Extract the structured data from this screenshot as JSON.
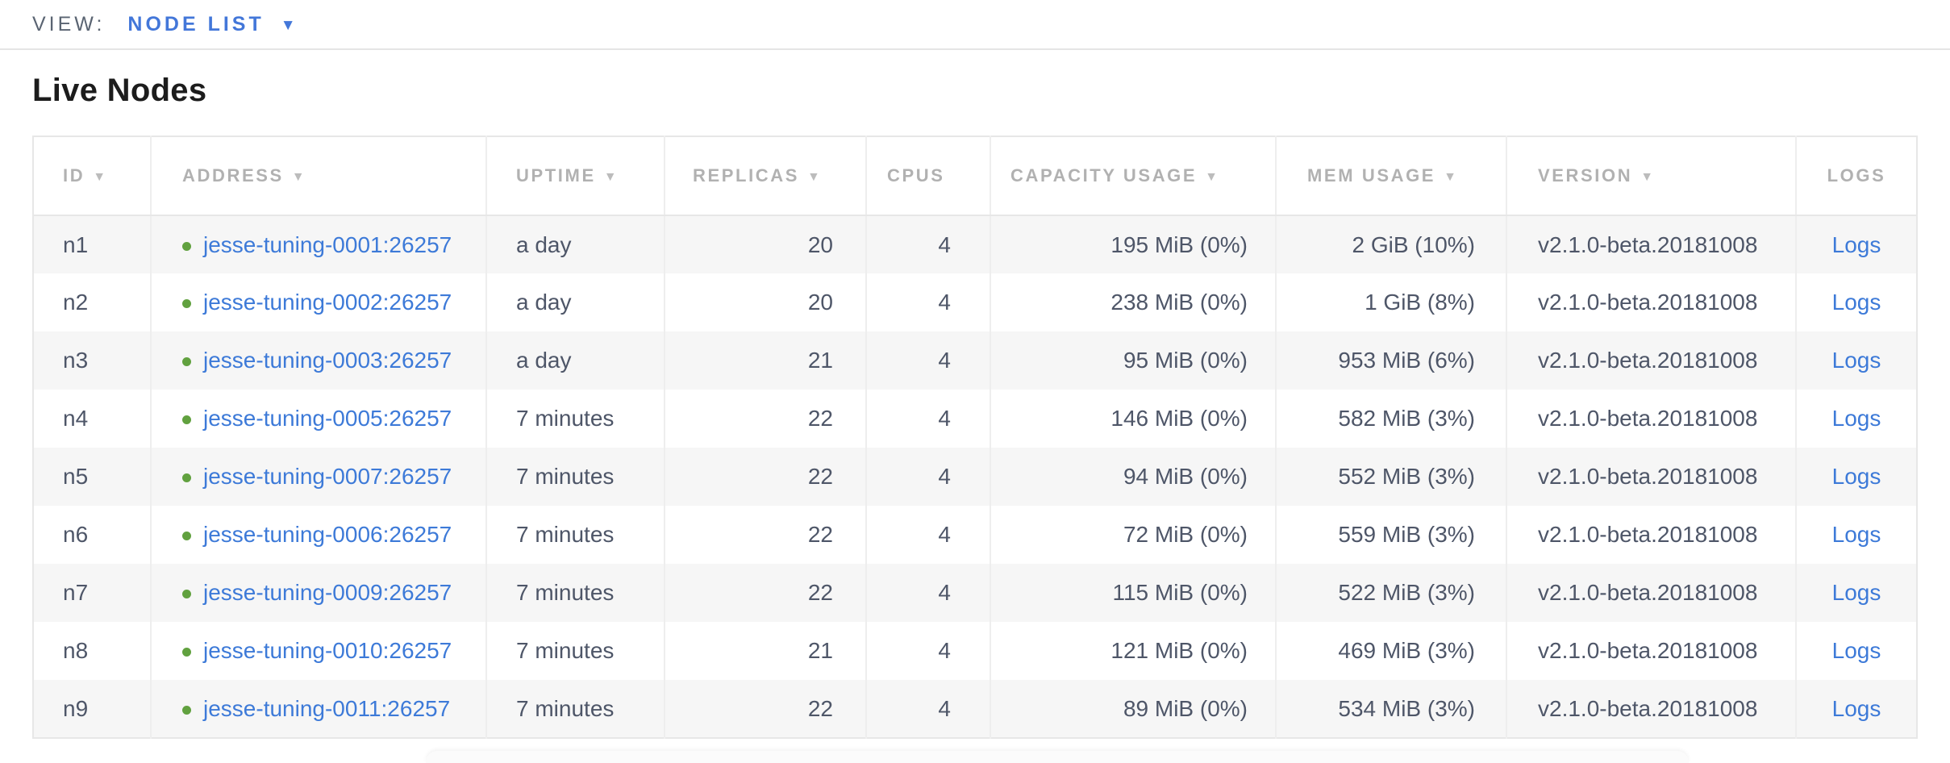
{
  "view_bar": {
    "label": "VIEW:",
    "selected": "NODE LIST"
  },
  "page": {
    "title": "Live Nodes"
  },
  "table": {
    "columns": [
      {
        "key": "id",
        "label": "ID",
        "sortable": true,
        "align": "left"
      },
      {
        "key": "address",
        "label": "ADDRESS",
        "sortable": true,
        "align": "left"
      },
      {
        "key": "uptime",
        "label": "UPTIME",
        "sortable": true,
        "align": "left"
      },
      {
        "key": "replicas",
        "label": "REPLICAS",
        "sortable": true,
        "align": "right"
      },
      {
        "key": "cpus",
        "label": "CPUS",
        "sortable": false,
        "align": "right"
      },
      {
        "key": "capacity",
        "label": "CAPACITY USAGE",
        "sortable": true,
        "align": "right"
      },
      {
        "key": "mem",
        "label": "MEM USAGE",
        "sortable": true,
        "align": "right"
      },
      {
        "key": "version",
        "label": "VERSION",
        "sortable": true,
        "align": "left"
      },
      {
        "key": "logs",
        "label": "LOGS",
        "sortable": false,
        "align": "center"
      }
    ],
    "rows": [
      {
        "id": "n1",
        "status": "live",
        "address": "jesse-tuning-0001:26257",
        "uptime": "a day",
        "replicas": "20",
        "cpus": "4",
        "capacity": "195 MiB (0%)",
        "mem": "2 GiB (10%)",
        "version": "v2.1.0-beta.20181008",
        "logs": "Logs"
      },
      {
        "id": "n2",
        "status": "live",
        "address": "jesse-tuning-0002:26257",
        "uptime": "a day",
        "replicas": "20",
        "cpus": "4",
        "capacity": "238 MiB (0%)",
        "mem": "1 GiB (8%)",
        "version": "v2.1.0-beta.20181008",
        "logs": "Logs"
      },
      {
        "id": "n3",
        "status": "live",
        "address": "jesse-tuning-0003:26257",
        "uptime": "a day",
        "replicas": "21",
        "cpus": "4",
        "capacity": "95 MiB (0%)",
        "mem": "953 MiB (6%)",
        "version": "v2.1.0-beta.20181008",
        "logs": "Logs"
      },
      {
        "id": "n4",
        "status": "live",
        "address": "jesse-tuning-0005:26257",
        "uptime": "7 minutes",
        "replicas": "22",
        "cpus": "4",
        "capacity": "146 MiB (0%)",
        "mem": "582 MiB (3%)",
        "version": "v2.1.0-beta.20181008",
        "logs": "Logs"
      },
      {
        "id": "n5",
        "status": "live",
        "address": "jesse-tuning-0007:26257",
        "uptime": "7 minutes",
        "replicas": "22",
        "cpus": "4",
        "capacity": "94 MiB (0%)",
        "mem": "552 MiB (3%)",
        "version": "v2.1.0-beta.20181008",
        "logs": "Logs"
      },
      {
        "id": "n6",
        "status": "live",
        "address": "jesse-tuning-0006:26257",
        "uptime": "7 minutes",
        "replicas": "22",
        "cpus": "4",
        "capacity": "72 MiB (0%)",
        "mem": "559 MiB (3%)",
        "version": "v2.1.0-beta.20181008",
        "logs": "Logs"
      },
      {
        "id": "n7",
        "status": "live",
        "address": "jesse-tuning-0009:26257",
        "uptime": "7 minutes",
        "replicas": "22",
        "cpus": "4",
        "capacity": "115 MiB (0%)",
        "mem": "522 MiB (3%)",
        "version": "v2.1.0-beta.20181008",
        "logs": "Logs"
      },
      {
        "id": "n8",
        "status": "live",
        "address": "jesse-tuning-0010:26257",
        "uptime": "7 minutes",
        "replicas": "21",
        "cpus": "4",
        "capacity": "121 MiB (0%)",
        "mem": "469 MiB (3%)",
        "version": "v2.1.0-beta.20181008",
        "logs": "Logs"
      },
      {
        "id": "n9",
        "status": "live",
        "address": "jesse-tuning-0011:26257",
        "uptime": "7 minutes",
        "replicas": "22",
        "cpus": "4",
        "capacity": "89 MiB (0%)",
        "mem": "534 MiB (3%)",
        "version": "v2.1.0-beta.20181008",
        "logs": "Logs"
      }
    ]
  },
  "icons": {
    "view_dropdown": "caret-down-icon",
    "sort": "caret-down-icon",
    "node_status": "live-dot-icon"
  },
  "colors": {
    "accent_blue": "#4377d9",
    "link_blue": "#3d7ad8",
    "status_live_green": "#61a13f",
    "header_gray": "#b1b1b1",
    "body_text": "#4e5668",
    "row_stripe": "#f6f6f6",
    "border": "#e7e7e7"
  }
}
